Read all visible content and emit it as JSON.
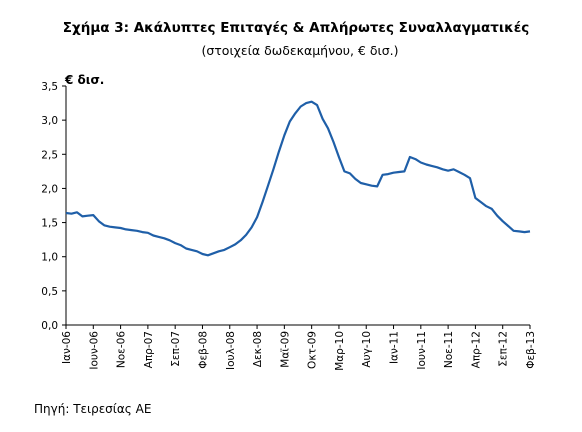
{
  "chart_data": {
    "type": "line",
    "title": "Σχήμα 3: Ακάλυπτες Επιταγές & Απλήρωτες Συναλλαγματικές",
    "subtitle": "(στοιχεία δωδεκαμήνου, € δισ.)",
    "unit_label": "€ δισ.",
    "source": "Πηγή: Τειρεσίας ΑΕ",
    "xlabel": "",
    "ylabel": "",
    "ylim": [
      0,
      3.5
    ],
    "yticks": [
      "0,0",
      "0,5",
      "1,0",
      "1,5",
      "2,0",
      "2,5",
      "3,0",
      "3,5"
    ],
    "grid": false,
    "line_color": "#1f5fa8",
    "x_tick_labels": [
      {
        "i": 0,
        "label": "Ιαν-06"
      },
      {
        "i": 5,
        "label": "Ιουν-06"
      },
      {
        "i": 10,
        "label": "Νοε-06"
      },
      {
        "i": 15,
        "label": "Απρ-07"
      },
      {
        "i": 20,
        "label": "Σεπ-07"
      },
      {
        "i": 25,
        "label": "Φεβ-08"
      },
      {
        "i": 30,
        "label": "Ιουλ-08"
      },
      {
        "i": 35,
        "label": "Δεκ-08"
      },
      {
        "i": 40,
        "label": "Μαϊ-09"
      },
      {
        "i": 45,
        "label": "Οκτ-09"
      },
      {
        "i": 50,
        "label": "Μαρ-10"
      },
      {
        "i": 55,
        "label": "Αυγ-10"
      },
      {
        "i": 60,
        "label": "Ιαν-11"
      },
      {
        "i": 65,
        "label": "Ιουν-11"
      },
      {
        "i": 70,
        "label": "Νοε-11"
      },
      {
        "i": 75,
        "label": "Απρ-12"
      },
      {
        "i": 80,
        "label": "Σεπ-12"
      },
      {
        "i": 85,
        "label": "Φεβ-13"
      }
    ],
    "series": [
      {
        "values": [
          1.64,
          1.63,
          1.65,
          1.59,
          1.6,
          1.61,
          1.52,
          1.46,
          1.44,
          1.43,
          1.42,
          1.4,
          1.39,
          1.38,
          1.36,
          1.35,
          1.31,
          1.29,
          1.27,
          1.24,
          1.2,
          1.17,
          1.12,
          1.1,
          1.08,
          1.04,
          1.02,
          1.05,
          1.08,
          1.1,
          1.14,
          1.18,
          1.24,
          1.32,
          1.43,
          1.58,
          1.8,
          2.04,
          2.28,
          2.54,
          2.78,
          2.98,
          3.1,
          3.2,
          3.25,
          3.27,
          3.22,
          3.02,
          2.88,
          2.68,
          2.46,
          2.25,
          2.22,
          2.14,
          2.08,
          2.06,
          2.04,
          2.03,
          2.2,
          2.21,
          2.23,
          2.24,
          2.25,
          2.46,
          2.43,
          2.38,
          2.35,
          2.33,
          2.31,
          2.28,
          2.26,
          2.28,
          2.24,
          2.2,
          2.15,
          1.86,
          1.8,
          1.74,
          1.7,
          1.6,
          1.52,
          1.45,
          1.38,
          1.37,
          1.36,
          1.37
        ]
      }
    ]
  }
}
